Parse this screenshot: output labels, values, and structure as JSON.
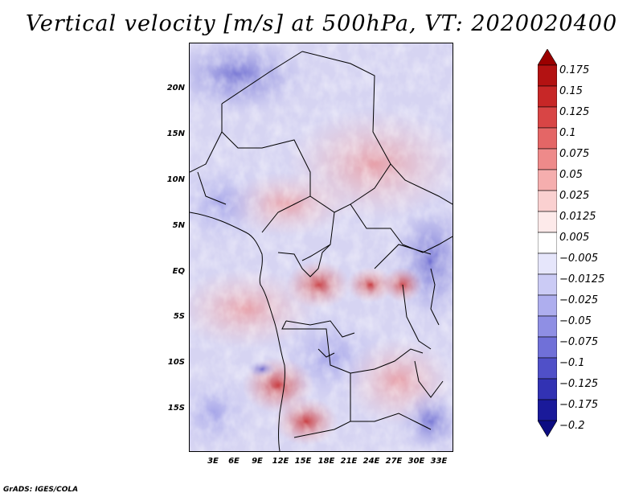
{
  "title": "Vertical velocity [m/s] at 500hPa, VT: 2020020400",
  "footer": "GrADS: IGES/COLA",
  "map": {
    "variable": "Vertical velocity",
    "units": "m/s",
    "level": "500hPa",
    "valid_time": "2020020400",
    "lat_labels": [
      "20N",
      "15N",
      "10N",
      "5N",
      "EQ",
      "5S",
      "10S",
      "15S"
    ],
    "lon_labels": [
      "3E",
      "6E",
      "9E",
      "12E",
      "15E",
      "18E",
      "21E",
      "24E",
      "27E",
      "30E",
      "33E"
    ]
  },
  "colorbar": {
    "labels": [
      "0.175",
      "0.15",
      "0.125",
      "0.1",
      "0.075",
      "0.05",
      "0.025",
      "0.0125",
      "0.005",
      "−0.005",
      "−0.0125",
      "−0.025",
      "−0.05",
      "−0.075",
      "−0.1",
      "−0.125",
      "−0.175",
      "−0.2"
    ],
    "colors": [
      "#9b0000",
      "#b31212",
      "#c72727",
      "#d84545",
      "#e46666",
      "#ee8a8a",
      "#f5aeae",
      "#fad0d0",
      "#fdeaea",
      "#ffffff",
      "#e6e6fb",
      "#cbcbf5",
      "#aeaeee",
      "#8f8fe4",
      "#7070d8",
      "#5050c8",
      "#3232b3",
      "#1a1a9a",
      "#0c0c82"
    ]
  }
}
